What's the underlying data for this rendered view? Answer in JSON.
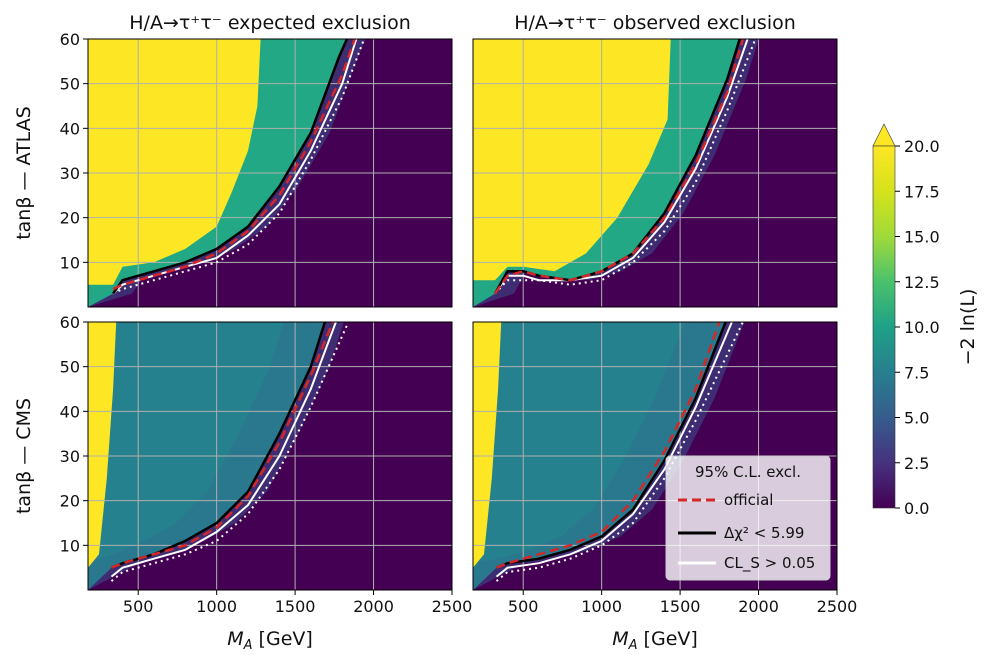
{
  "chart_data": {
    "type": "heatmap",
    "panel_titles": {
      "left": "H/A→τ⁺τ⁻  expected exclusion",
      "right": "H/A→τ⁺τ⁻  observed exclusion"
    },
    "row_labels": {
      "top": "tanβ — ATLAS",
      "bottom": "tanβ — CMS"
    },
    "xlabel": "M_A [GeV]",
    "xlabel_parts": {
      "base": "M",
      "sub": "A",
      "unit": " [GeV]"
    },
    "xlim": [
      180,
      2500
    ],
    "ylim": [
      0,
      60
    ],
    "xticks": [
      500,
      1000,
      1500,
      2000,
      2500
    ],
    "yticks": [
      10,
      20,
      30,
      40,
      50,
      60
    ],
    "grid": true,
    "colorbar": {
      "label": "−2 ln(L)",
      "min": 0.0,
      "max": 20.0,
      "extend": "max",
      "ticks": [
        "0.0",
        "2.5",
        "5.0",
        "7.5",
        "10.0",
        "12.5",
        "15.0",
        "17.5",
        "20.0"
      ],
      "colormap": "viridis"
    },
    "legend": {
      "title": "95% C.L. excl.",
      "placement": "lower-right of bottom-right panel",
      "entries": [
        {
          "label": "official",
          "style": "dashed",
          "color": "#d62728"
        },
        {
          "label": "Δχ² < 5.99",
          "style": "solid",
          "color": "#000000"
        },
        {
          "label": "CL_S > 0.05",
          "style": "solid",
          "color": "#ffffff"
        }
      ]
    },
    "panels": [
      {
        "id": "atlas-expected",
        "title": "H/A→τ⁺τ⁻  expected exclusion",
        "contours": {
          "official_dashed": [
            [
              340,
              4
            ],
            [
              400,
              5
            ],
            [
              600,
              7
            ],
            [
              800,
              9
            ],
            [
              1000,
              12
            ],
            [
              1200,
              17
            ],
            [
              1400,
              25
            ],
            [
              1600,
              37
            ],
            [
              1800,
              52
            ],
            [
              1880,
              60
            ]
          ],
          "delta_chi2_black": [
            [
              340,
              3
            ],
            [
              400,
              6
            ],
            [
              600,
              8
            ],
            [
              800,
              10
            ],
            [
              1000,
              13
            ],
            [
              1200,
              18
            ],
            [
              1400,
              27
            ],
            [
              1600,
              39
            ],
            [
              1780,
              56
            ],
            [
              1830,
              60
            ]
          ],
          "cls_white": [
            [
              340,
              3
            ],
            [
              400,
              5
            ],
            [
              600,
              7
            ],
            [
              800,
              9
            ],
            [
              1000,
              11
            ],
            [
              1200,
              16
            ],
            [
              1400,
              23
            ],
            [
              1600,
              35
            ],
            [
              1800,
              50
            ],
            [
              1890,
              60
            ]
          ],
          "cls_white_dotted": [
            [
              340,
              3
            ],
            [
              400,
              4
            ],
            [
              600,
              6
            ],
            [
              800,
              8
            ],
            [
              1000,
              10
            ],
            [
              1200,
              14
            ],
            [
              1400,
              21
            ],
            [
              1600,
              33
            ],
            [
              1800,
              47
            ],
            [
              1940,
              60
            ]
          ]
        },
        "saturated_region": [
          [
            180,
            5
          ],
          [
            340,
            5
          ],
          [
            400,
            9
          ],
          [
            600,
            10
          ],
          [
            800,
            13
          ],
          [
            1000,
            18
          ],
          [
            1100,
            26
          ],
          [
            1200,
            35
          ],
          [
            1260,
            45
          ],
          [
            1280,
            60
          ]
        ]
      },
      {
        "id": "atlas-observed",
        "title": "H/A→τ⁺τ⁻  observed exclusion",
        "contours": {
          "official_dashed": [
            [
              320,
              3
            ],
            [
              400,
              7
            ],
            [
              500,
              8
            ],
            [
              600,
              7
            ],
            [
              800,
              6
            ],
            [
              1000,
              8
            ],
            [
              1200,
              12
            ],
            [
              1400,
              20
            ],
            [
              1600,
              32
            ],
            [
              1800,
              48
            ],
            [
              1900,
              60
            ]
          ],
          "delta_chi2_black": [
            [
              320,
              3
            ],
            [
              400,
              8
            ],
            [
              500,
              8
            ],
            [
              600,
              7
            ],
            [
              800,
              6
            ],
            [
              1000,
              8
            ],
            [
              1200,
              12
            ],
            [
              1400,
              21
            ],
            [
              1600,
              34
            ],
            [
              1800,
              51
            ],
            [
              1880,
              60
            ]
          ],
          "cls_white": [
            [
              320,
              3
            ],
            [
              400,
              7
            ],
            [
              500,
              7
            ],
            [
              600,
              6
            ],
            [
              800,
              6
            ],
            [
              1000,
              7
            ],
            [
              1200,
              11
            ],
            [
              1400,
              19
            ],
            [
              1600,
              31
            ],
            [
              1800,
              47
            ],
            [
              1930,
              60
            ]
          ],
          "cls_white_dotted": [
            [
              320,
              3
            ],
            [
              400,
              6
            ],
            [
              500,
              6
            ],
            [
              600,
              6
            ],
            [
              800,
              5
            ],
            [
              1000,
              6
            ],
            [
              1200,
              10
            ],
            [
              1400,
              17
            ],
            [
              1600,
              28
            ],
            [
              1800,
              44
            ],
            [
              1980,
              60
            ]
          ]
        },
        "saturated_region": [
          [
            180,
            6
          ],
          [
            320,
            6
          ],
          [
            400,
            9
          ],
          [
            500,
            9
          ],
          [
            700,
            8
          ],
          [
            900,
            12
          ],
          [
            1100,
            20
          ],
          [
            1300,
            32
          ],
          [
            1420,
            42
          ],
          [
            1440,
            60
          ]
        ]
      },
      {
        "id": "cms-expected",
        "title": "",
        "contours": {
          "official_dashed": [
            [
              330,
              5
            ],
            [
              400,
              6
            ],
            [
              600,
              8
            ],
            [
              800,
              10
            ],
            [
              1000,
              14
            ],
            [
              1200,
              21
            ],
            [
              1400,
              33
            ],
            [
              1600,
              48
            ],
            [
              1740,
              60
            ]
          ],
          "delta_chi2_black": [
            [
              330,
              5
            ],
            [
              400,
              6
            ],
            [
              600,
              8
            ],
            [
              800,
              11
            ],
            [
              1000,
              15
            ],
            [
              1200,
              22
            ],
            [
              1400,
              35
            ],
            [
              1600,
              50
            ],
            [
              1690,
              60
            ]
          ],
          "cls_white": [
            [
              330,
              3
            ],
            [
              400,
              5
            ],
            [
              600,
              7
            ],
            [
              800,
              9
            ],
            [
              1000,
              13
            ],
            [
              1200,
              19
            ],
            [
              1400,
              30
            ],
            [
              1600,
              45
            ],
            [
              1760,
              60
            ]
          ],
          "cls_white_dotted": [
            [
              330,
              2
            ],
            [
              400,
              4
            ],
            [
              600,
              6
            ],
            [
              800,
              8
            ],
            [
              1000,
              11
            ],
            [
              1200,
              17
            ],
            [
              1400,
              27
            ],
            [
              1600,
              41
            ],
            [
              1840,
              60
            ]
          ]
        },
        "saturated_region": [
          [
            180,
            5
          ],
          [
            250,
            8
          ],
          [
            300,
            25
          ],
          [
            340,
            45
          ],
          [
            360,
            60
          ]
        ]
      },
      {
        "id": "cms-observed",
        "title": "",
        "contours": {
          "official_dashed": [
            [
              330,
              5
            ],
            [
              400,
              6
            ],
            [
              600,
              8
            ],
            [
              800,
              10
            ],
            [
              1000,
              13
            ],
            [
              1200,
              20
            ],
            [
              1400,
              31
            ],
            [
              1600,
              45
            ],
            [
              1750,
              60
            ]
          ],
          "delta_chi2_black": [
            [
              330,
              5
            ],
            [
              400,
              6
            ],
            [
              600,
              7
            ],
            [
              800,
              9
            ],
            [
              1000,
              12
            ],
            [
              1200,
              18
            ],
            [
              1400,
              29
            ],
            [
              1600,
              43
            ],
            [
              1790,
              60
            ]
          ],
          "cls_white": [
            [
              330,
              3
            ],
            [
              400,
              5
            ],
            [
              600,
              6
            ],
            [
              800,
              8
            ],
            [
              1000,
              11
            ],
            [
              1200,
              17
            ],
            [
              1400,
              27
            ],
            [
              1600,
              41
            ],
            [
              1830,
              60
            ]
          ],
          "cls_white_dotted": [
            [
              330,
              2
            ],
            [
              400,
              4
            ],
            [
              600,
              5
            ],
            [
              800,
              7
            ],
            [
              1000,
              10
            ],
            [
              1200,
              15
            ],
            [
              1400,
              25
            ],
            [
              1600,
              38
            ],
            [
              1900,
              60
            ]
          ]
        },
        "saturated_region": [
          [
            180,
            5
          ],
          [
            250,
            8
          ],
          [
            300,
            25
          ],
          [
            340,
            45
          ],
          [
            360,
            60
          ]
        ]
      }
    ]
  }
}
